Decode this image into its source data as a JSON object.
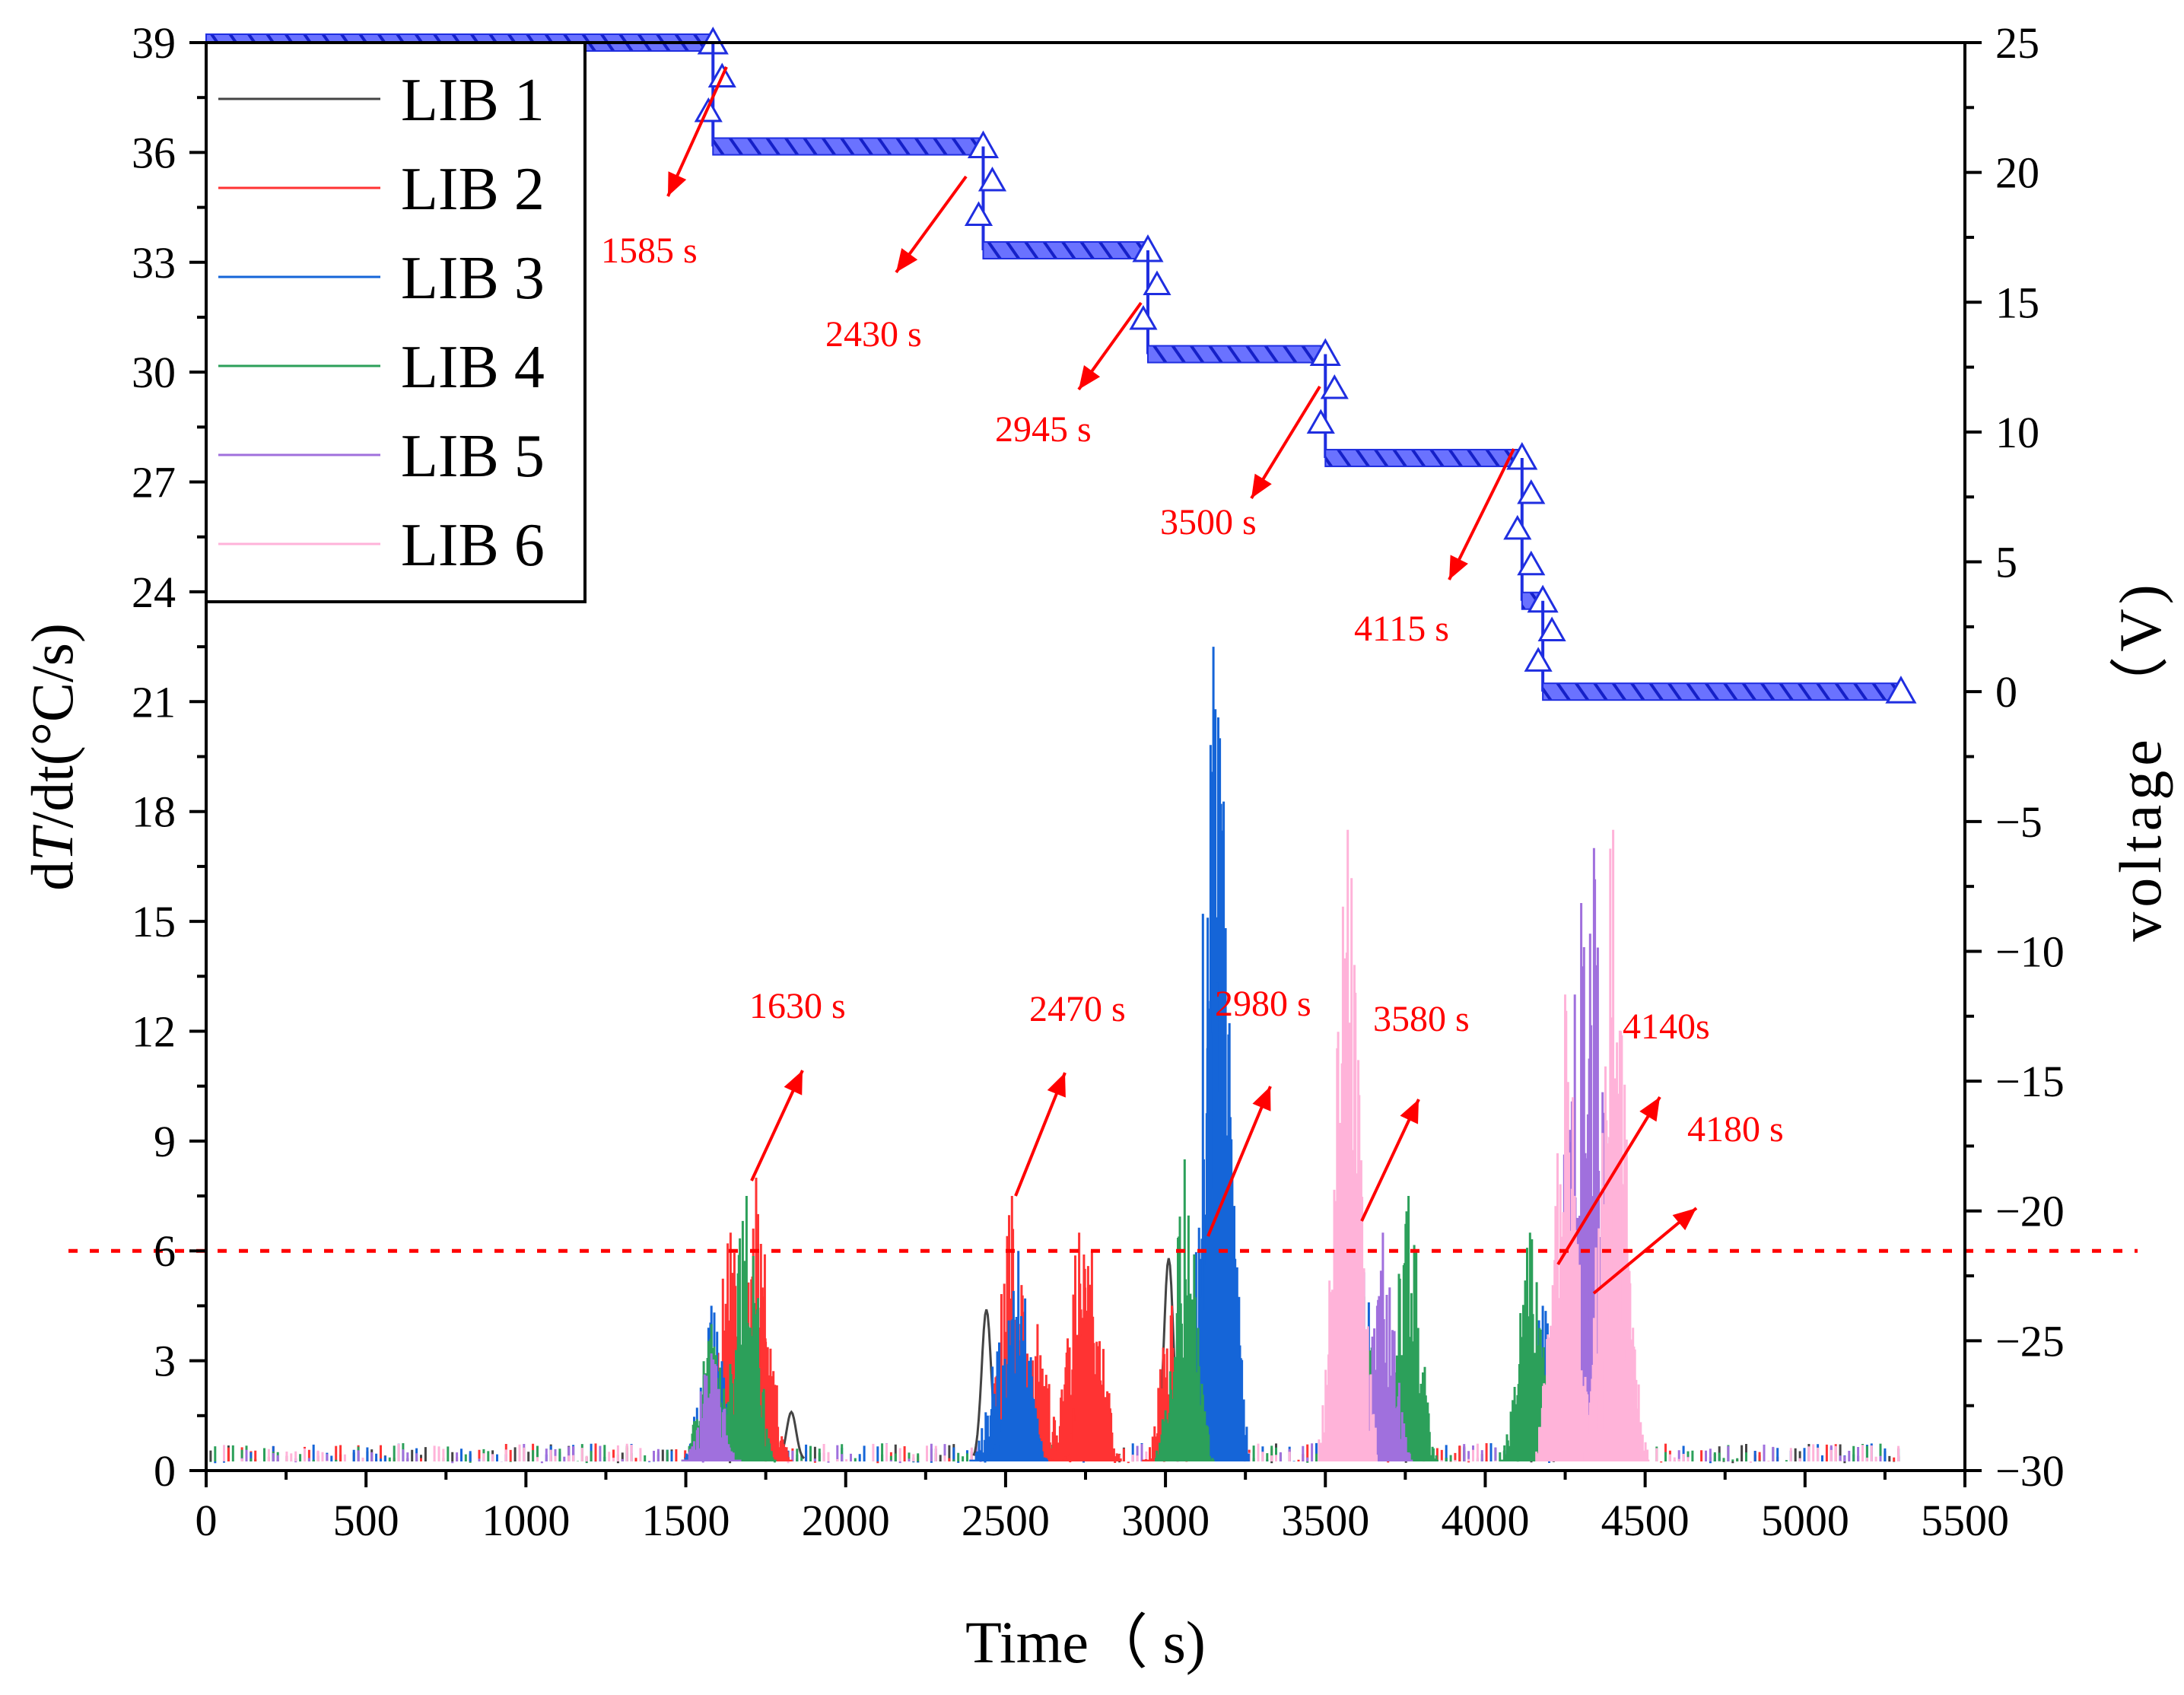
{
  "chart_data": {
    "type": "line",
    "x": {
      "label": "Time（ s)",
      "range": [
        0,
        5500
      ],
      "ticks": [
        "0",
        "500",
        "1000",
        "1500",
        "2000",
        "2500",
        "3000",
        "3500",
        "4000",
        "4500",
        "5000",
        "5500"
      ]
    },
    "y_left": {
      "label_prefix": "d",
      "label_italic": "T",
      "label_suffix": "/dt(°C/s)",
      "range": [
        0,
        39
      ],
      "ticks": [
        "0",
        "3",
        "6",
        "9",
        "12",
        "15",
        "18",
        "21",
        "24",
        "27",
        "30",
        "33",
        "36",
        "39"
      ]
    },
    "y_right": {
      "label": "voltage （V)",
      "range": [
        -30,
        25
      ],
      "ticks": [
        "−30",
        "−25",
        "−20",
        "−15",
        "−10",
        "−5",
        "0",
        "5",
        "10",
        "15",
        "20",
        "25"
      ]
    },
    "threshold": {
      "value": 6,
      "color": "#ff0000",
      "style": "dotted"
    },
    "legend": [
      {
        "name": "LIB 1",
        "color": "#444444"
      },
      {
        "name": "LIB 2",
        "color": "#ff3333"
      },
      {
        "name": "LIB 3",
        "color": "#1565d8"
      },
      {
        "name": "LIB 4",
        "color": "#2ca05a"
      },
      {
        "name": "LIB 5",
        "color": "#a070dd"
      },
      {
        "name": "LIB 6",
        "color": "#ffb3d9"
      }
    ],
    "series": [
      {
        "name": "LIB 1",
        "color": "#444444",
        "peaks": [
          [
            1630,
            1.0
          ],
          [
            1760,
            1.5
          ],
          [
            1830,
            1.6
          ],
          [
            2440,
            4.4
          ],
          [
            3010,
            5.8
          ],
          [
            4140,
            1.5
          ]
        ]
      },
      {
        "name": "LIB 2",
        "color": "#ff3333",
        "peaks": [
          [
            1640,
            6.5
          ],
          [
            1720,
            8.0
          ],
          [
            1740,
            5.0
          ],
          [
            2520,
            7.5
          ],
          [
            2600,
            4.0
          ],
          [
            2730,
            6.5
          ],
          [
            2770,
            6.0
          ],
          [
            3020,
            4.5
          ],
          [
            3580,
            3.0
          ]
        ]
      },
      {
        "name": "LIB 3",
        "color": "#1565d8",
        "peaks": [
          [
            1580,
            4.5
          ],
          [
            2480,
            3.5
          ],
          [
            2540,
            6.0
          ],
          [
            3120,
            8.5
          ],
          [
            3150,
            22.5
          ],
          [
            3170,
            20.0
          ],
          [
            3580,
            9.0
          ],
          [
            3600,
            7.5
          ],
          [
            4180,
            4.5
          ]
        ]
      },
      {
        "name": "LIB 4",
        "color": "#2ca05a",
        "peaks": [
          [
            1580,
            4.0
          ],
          [
            1690,
            7.5
          ],
          [
            3060,
            8.5
          ],
          [
            3600,
            8.0
          ],
          [
            3760,
            7.5
          ],
          [
            4140,
            6.5
          ]
        ]
      },
      {
        "name": "LIB 5",
        "color": "#a070dd",
        "peaks": [
          [
            1580,
            3.2
          ],
          [
            3680,
            6.5
          ],
          [
            4300,
            15.5
          ],
          [
            4340,
            17.0
          ],
          [
            4280,
            13.0
          ]
        ]
      },
      {
        "name": "LIB 6",
        "color": "#ffb3d9",
        "peaks": [
          [
            3570,
            17.5
          ],
          [
            4250,
            13.0
          ],
          [
            4400,
            17.5
          ],
          [
            4420,
            9.0
          ]
        ]
      }
    ],
    "voltage_series": {
      "name": "voltage",
      "color": "#1f2ee0",
      "points": [
        [
          0,
          25
        ],
        [
          1585,
          25
        ],
        [
          1585,
          21
        ],
        [
          2430,
          21
        ],
        [
          2430,
          17
        ],
        [
          2945,
          17
        ],
        [
          2945,
          13
        ],
        [
          3500,
          13
        ],
        [
          3500,
          9
        ],
        [
          4115,
          9
        ],
        [
          4115,
          3.5
        ],
        [
          4180,
          3.5
        ],
        [
          4180,
          0
        ],
        [
          5300,
          0
        ]
      ]
    },
    "annotations_voltage": [
      "1585 s",
      "2430 s",
      "2945 s",
      "3500 s",
      "4115 s"
    ],
    "annotations_peaks": [
      "1630 s",
      "2470 s",
      "2980 s",
      "3580 s",
      "4140s",
      "4180 s"
    ]
  }
}
